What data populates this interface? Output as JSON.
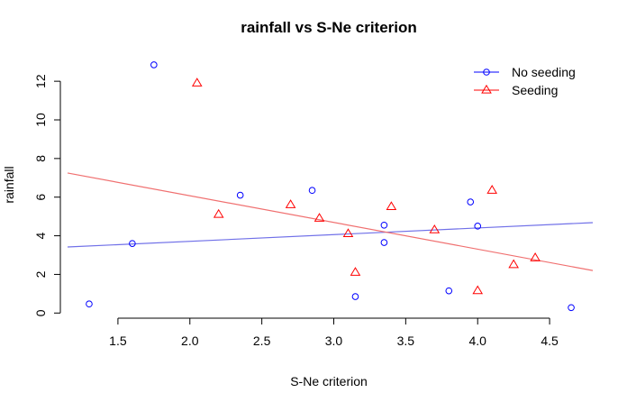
{
  "chart_data": {
    "type": "scatter",
    "title": "rainfall vs S-Ne criterion",
    "xlabel": "S-Ne criterion",
    "ylabel": "rainfall",
    "xlim": [
      1.15,
      4.8
    ],
    "ylim": [
      -0.5,
      13.5
    ],
    "xticks": [
      1.5,
      2.0,
      2.5,
      3.0,
      3.5,
      4.0,
      4.5
    ],
    "xtick_labels": [
      "1.5",
      "2.0",
      "2.5",
      "3.0",
      "3.5",
      "4.0",
      "4.5"
    ],
    "yticks": [
      0,
      2,
      4,
      6,
      8,
      10,
      12
    ],
    "ytick_labels": [
      "0",
      "2",
      "4",
      "6",
      "8",
      "10",
      "12"
    ],
    "legend_position": "top-right",
    "series": [
      {
        "name": "No seeding",
        "color": "#0000ff",
        "marker": "circle",
        "points": [
          [
            1.3,
            0.47
          ],
          [
            1.6,
            3.6
          ],
          [
            1.75,
            12.85
          ],
          [
            2.35,
            6.1
          ],
          [
            2.85,
            6.35
          ],
          [
            3.15,
            0.85
          ],
          [
            3.35,
            4.55
          ],
          [
            3.35,
            3.65
          ],
          [
            3.8,
            1.15
          ],
          [
            3.95,
            5.75
          ],
          [
            4.0,
            4.5
          ],
          [
            4.65,
            0.28
          ]
        ],
        "fit": {
          "color": "#7070e8",
          "x": [
            1.15,
            4.8
          ],
          "y": [
            3.42,
            4.68
          ]
        }
      },
      {
        "name": "Seeding",
        "color": "#ff0000",
        "marker": "triangle",
        "points": [
          [
            2.05,
            11.9
          ],
          [
            2.2,
            5.1
          ],
          [
            2.7,
            5.6
          ],
          [
            2.9,
            4.9
          ],
          [
            3.1,
            4.1
          ],
          [
            3.15,
            2.1
          ],
          [
            3.4,
            5.5
          ],
          [
            3.7,
            4.3
          ],
          [
            4.0,
            1.15
          ],
          [
            4.1,
            6.35
          ],
          [
            4.25,
            2.5
          ],
          [
            4.4,
            2.85
          ]
        ],
        "fit": {
          "color": "#f07070",
          "x": [
            1.15,
            4.8
          ],
          "y": [
            7.25,
            2.2
          ]
        }
      }
    ]
  }
}
